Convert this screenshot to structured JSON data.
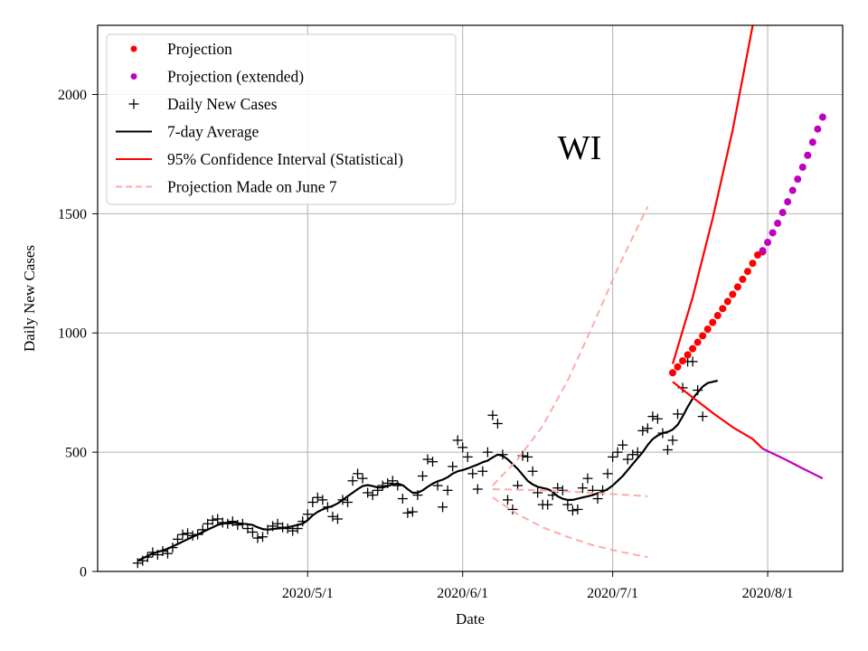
{
  "chart_data": {
    "type": "line",
    "xlabel": "Date",
    "ylabel": "Daily New Cases",
    "annotation": "WI",
    "x_axis": {
      "type": "date",
      "range": [
        "2020-03-20",
        "2020-08-16"
      ],
      "ticks": [
        {
          "date": "2020-05-01",
          "label": "2020/5/1"
        },
        {
          "date": "2020-06-01",
          "label": "2020/6/1"
        },
        {
          "date": "2020-07-01",
          "label": "2020/7/1"
        },
        {
          "date": "2020-08-01",
          "label": "2020/8/1"
        }
      ]
    },
    "y_axis": {
      "range": [
        0,
        2290
      ],
      "ticks": [
        0,
        500,
        1000,
        1500,
        2000
      ]
    },
    "grid": true,
    "legend_position": "top-left",
    "legend": [
      {
        "label": "Projection",
        "style": "dot",
        "color": "#ff0000"
      },
      {
        "label": "Projection (extended)",
        "style": "dot",
        "color": "#bf00bf"
      },
      {
        "label": "Daily New Cases",
        "style": "plus",
        "color": "#000000"
      },
      {
        "label": "7-day Average",
        "style": "line",
        "color": "#000000"
      },
      {
        "label": "95% Confidence Interval (Statistical)",
        "style": "line",
        "color": "#ff0000"
      },
      {
        "label": "Projection Made on June 7",
        "style": "dashed",
        "color": "#ffaaaa"
      }
    ],
    "series": [
      {
        "name": "Daily New Cases",
        "style": "plus",
        "color": "#000000",
        "start_date": "2020-03-28",
        "values": [
          35,
          45,
          60,
          80,
          70,
          85,
          75,
          100,
          135,
          155,
          160,
          150,
          155,
          175,
          200,
          215,
          220,
          205,
          200,
          210,
          195,
          200,
          180,
          165,
          140,
          145,
          175,
          190,
          200,
          185,
          180,
          170,
          180,
          210,
          240,
          290,
          310,
          300,
          270,
          230,
          220,
          300,
          290,
          380,
          410,
          390,
          330,
          320,
          340,
          360,
          370,
          380,
          360,
          305,
          245,
          250,
          320,
          400,
          470,
          460,
          360,
          270,
          340,
          440,
          550,
          520,
          480,
          410,
          345,
          420,
          500,
          655,
          620,
          490,
          300,
          260,
          360,
          485,
          480,
          420,
          330,
          280,
          280,
          320,
          350,
          340,
          280,
          255,
          260,
          350,
          390,
          340,
          305,
          340,
          410,
          480,
          500,
          530,
          470,
          490,
          500,
          590,
          600,
          650,
          640,
          580,
          510,
          550,
          660,
          770,
          880,
          880,
          760,
          650
        ]
      },
      {
        "name": "7-day Average",
        "style": "line",
        "color": "#000000",
        "start_date": "2020-03-28",
        "values": [
          45,
          55,
          65,
          75,
          82,
          88,
          95,
          105,
          115,
          125,
          135,
          145,
          155,
          165,
          175,
          185,
          195,
          200,
          205,
          205,
          202,
          200,
          198,
          195,
          185,
          178,
          175,
          178,
          180,
          182,
          185,
          190,
          195,
          200,
          215,
          235,
          250,
          260,
          268,
          275,
          285,
          300,
          315,
          330,
          345,
          358,
          362,
          358,
          352,
          352,
          358,
          365,
          368,
          362,
          345,
          330,
          330,
          340,
          355,
          368,
          378,
          385,
          395,
          410,
          420,
          425,
          432,
          440,
          448,
          458,
          465,
          478,
          490,
          485,
          470,
          450,
          430,
          405,
          380,
          365,
          355,
          350,
          345,
          335,
          315,
          305,
          300,
          300,
          305,
          310,
          315,
          320,
          328,
          335,
          345,
          360,
          380,
          400,
          425,
          450,
          475,
          500,
          530,
          555,
          570,
          580,
          585,
          595,
          615,
          650,
          690,
          725,
          750,
          775,
          790,
          795,
          800
        ]
      },
      {
        "name": "Projection",
        "style": "dot",
        "color": "#ff0000",
        "start_date": "2020-07-13",
        "values": [
          833,
          858,
          883,
          908,
          934,
          961,
          988,
          1016,
          1044,
          1073,
          1102,
          1132,
          1162,
          1193,
          1225,
          1258,
          1292,
          1327,
          1340
        ]
      },
      {
        "name": "Projection (extended)",
        "style": "dot",
        "color": "#bf00bf",
        "start_date": "2020-07-31",
        "values": [
          1345,
          1380,
          1420,
          1460,
          1505,
          1550,
          1598,
          1645,
          1695,
          1745,
          1800,
          1855,
          1905
        ]
      },
      {
        "name": "95% Confidence Interval (Statistical) - upper",
        "style": "line",
        "color": "#ff0000",
        "points": [
          [
            "2020-07-13",
            870
          ],
          [
            "2020-07-17",
            1150
          ],
          [
            "2020-07-21",
            1480
          ],
          [
            "2020-07-25",
            1850
          ],
          [
            "2020-07-29",
            2290
          ]
        ]
      },
      {
        "name": "95% Confidence Interval (Statistical) - lower",
        "style": "line",
        "color": "#ff0000",
        "points": [
          [
            "2020-07-13",
            795
          ],
          [
            "2020-07-17",
            730
          ],
          [
            "2020-07-21",
            665
          ],
          [
            "2020-07-25",
            605
          ],
          [
            "2020-07-29",
            555
          ],
          [
            "2020-07-31",
            515
          ]
        ]
      },
      {
        "name": "Lower bound (extended)",
        "style": "line",
        "color": "#bf00bf",
        "points": [
          [
            "2020-07-31",
            515
          ],
          [
            "2020-08-04",
            475
          ],
          [
            "2020-08-08",
            432
          ],
          [
            "2020-08-12",
            390
          ]
        ]
      },
      {
        "name": "Projection Made on June 7 - upper",
        "style": "dashed",
        "color": "#ffaaaa",
        "points": [
          [
            "2020-06-07",
            360
          ],
          [
            "2020-06-12",
            470
          ],
          [
            "2020-06-17",
            610
          ],
          [
            "2020-06-22",
            800
          ],
          [
            "2020-06-27",
            1030
          ],
          [
            "2020-07-02",
            1270
          ],
          [
            "2020-07-08",
            1530
          ]
        ]
      },
      {
        "name": "Projection Made on June 7 - middle",
        "style": "dashed",
        "color": "#ffaaaa",
        "points": [
          [
            "2020-06-07",
            345
          ],
          [
            "2020-06-17",
            340
          ],
          [
            "2020-06-27",
            330
          ],
          [
            "2020-07-08",
            315
          ]
        ]
      },
      {
        "name": "Projection Made on June 7 - lower",
        "style": "dashed",
        "color": "#ffaaaa",
        "points": [
          [
            "2020-06-07",
            310
          ],
          [
            "2020-06-12",
            240
          ],
          [
            "2020-06-17",
            185
          ],
          [
            "2020-06-22",
            145
          ],
          [
            "2020-06-27",
            110
          ],
          [
            "2020-07-02",
            85
          ],
          [
            "2020-07-08",
            60
          ]
        ]
      }
    ]
  }
}
